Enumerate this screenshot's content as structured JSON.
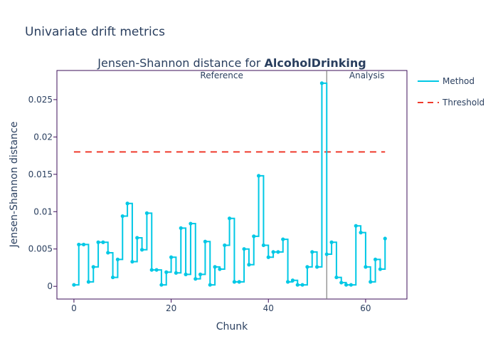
{
  "figure_title": "Univariate drift metrics",
  "chart_data": {
    "type": "line",
    "title_prefix": "Jensen-Shannon distance for ",
    "title_bold": "AlcoholDrinking",
    "xlabel": "Chunk",
    "ylabel": "Jensen-Shannon distance",
    "xlim": [
      -3.5,
      68.5
    ],
    "ylim": [
      -0.0017,
      0.0289
    ],
    "xticks": [
      0,
      20,
      40,
      60
    ],
    "yticks": [
      0,
      0.005,
      0.01,
      0.015,
      0.02,
      0.025
    ],
    "ytick_labels": [
      "0",
      "0.005",
      "0.01",
      "0.015",
      "0.02",
      "0.025"
    ],
    "period_boundary": 52,
    "period_labels": [
      "Reference",
      "Analysis"
    ],
    "threshold": 0.018,
    "series": [
      {
        "name": "Method",
        "color": "#00c8e5",
        "step": true,
        "x": [
          0,
          1,
          2,
          3,
          4,
          5,
          6,
          7,
          8,
          9,
          10,
          11,
          12,
          13,
          14,
          15,
          16,
          17,
          18,
          19,
          20,
          21,
          22,
          23,
          24,
          25,
          26,
          27,
          28,
          29,
          30,
          31,
          32,
          33,
          34,
          35,
          36,
          37,
          38,
          39,
          40,
          41,
          42,
          43,
          44,
          45,
          46,
          47,
          48,
          49,
          50,
          51,
          52,
          53,
          54,
          55,
          56,
          57,
          58,
          59,
          60,
          61,
          62,
          63,
          64
        ],
        "values": [
          0.0002,
          0.0056,
          0.0056,
          0.0006,
          0.0026,
          0.0059,
          0.0059,
          0.0045,
          0.0012,
          0.0036,
          0.0094,
          0.0111,
          0.0033,
          0.0065,
          0.0049,
          0.0098,
          0.0022,
          0.0022,
          0.0002,
          0.0019,
          0.0039,
          0.0018,
          0.0078,
          0.0016,
          0.0084,
          0.001,
          0.0016,
          0.006,
          0.0002,
          0.0026,
          0.0023,
          0.0055,
          0.0091,
          0.0006,
          0.0006,
          0.005,
          0.0029,
          0.0067,
          0.0148,
          0.0055,
          0.0039,
          0.0046,
          0.0046,
          0.0063,
          0.0006,
          0.0008,
          0.0002,
          0.0002,
          0.0026,
          0.0046,
          0.0026,
          0.0272,
          0.0043,
          0.0059,
          0.0012,
          0.0005,
          0.0002,
          0.0002,
          0.0081,
          0.0072,
          0.0026,
          0.0006,
          0.0036,
          0.0023,
          0.0064
        ]
      },
      {
        "name": "Threshold",
        "color": "#ef3b2c",
        "dash": true,
        "x": [
          0,
          64
        ],
        "values": [
          0.018,
          0.018
        ]
      }
    ],
    "legend_placement": "top-right outside",
    "grid": false
  }
}
